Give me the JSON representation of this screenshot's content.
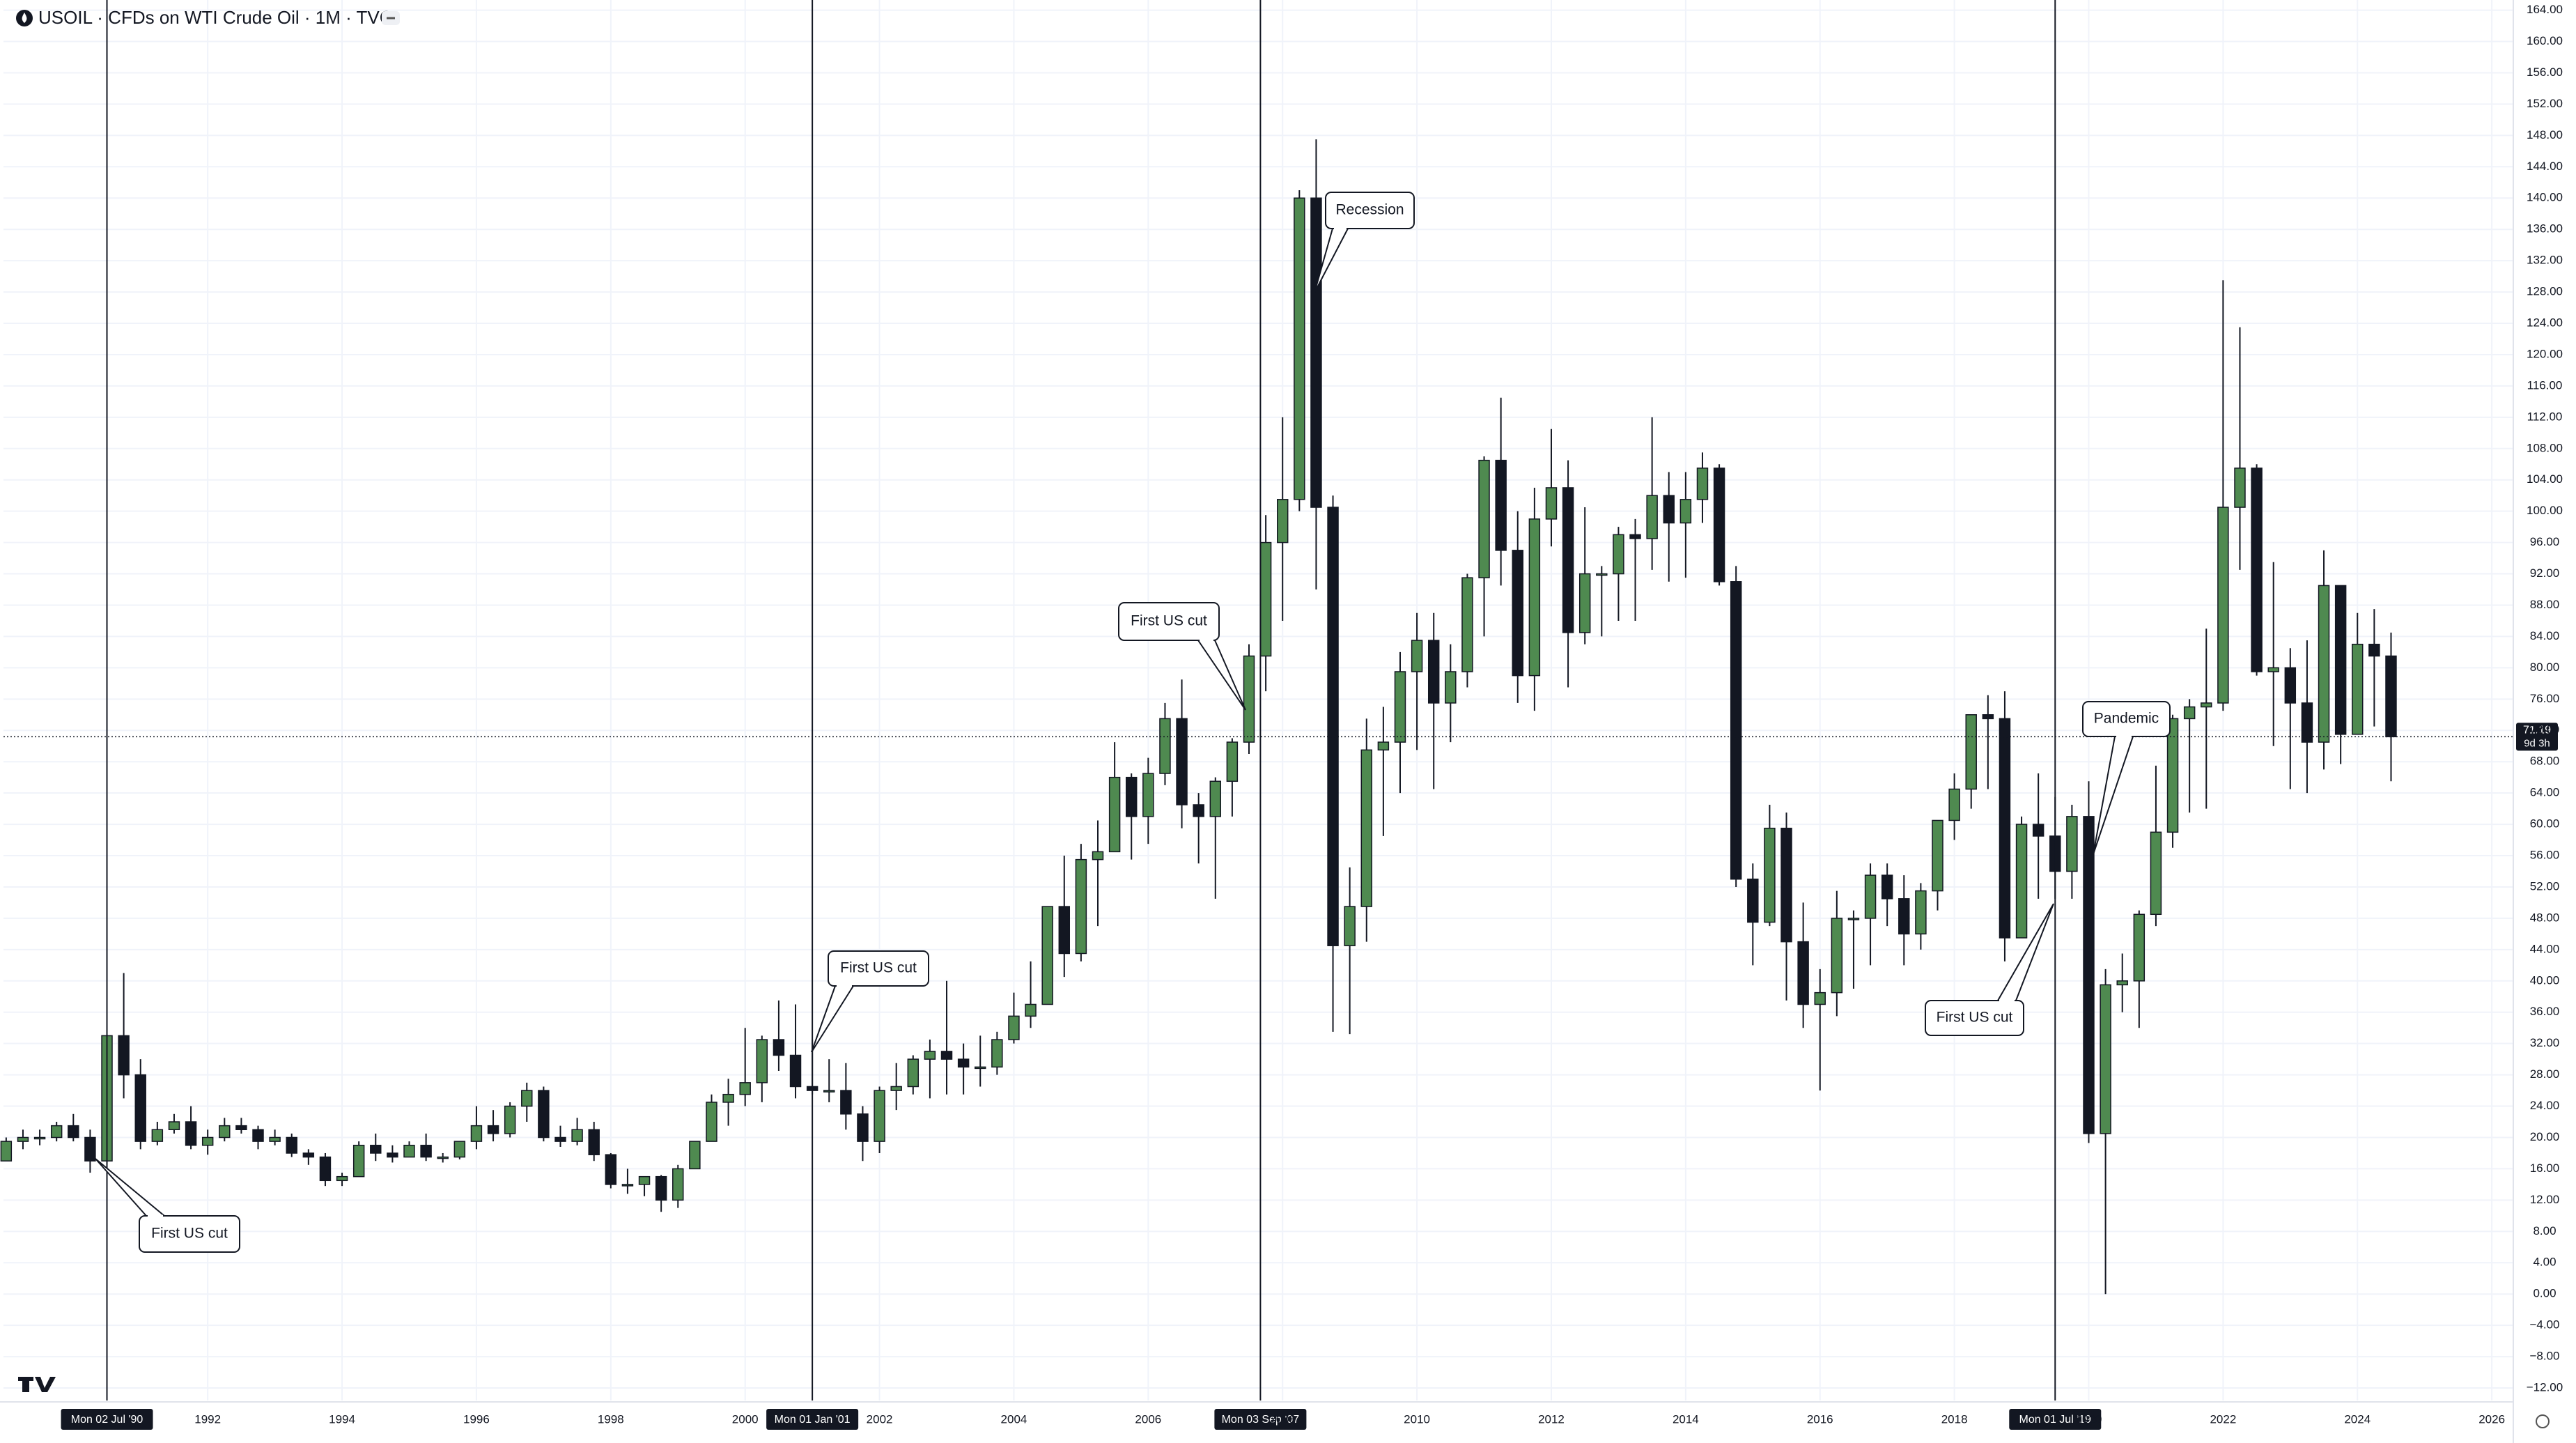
{
  "chart_data": {
    "type": "candlestick",
    "title": "USOIL · CFDs on WTI Crude Oil · 1M · TVC",
    "x": [
      1989,
      1989.25,
      1989.5,
      1989.75,
      1990,
      1990.25,
      1990.5,
      1990.75,
      1991,
      1991.25,
      1991.5,
      1991.75,
      1992,
      1992.25,
      1992.5,
      1992.75,
      1993,
      1993.25,
      1993.5,
      1993.75,
      1994,
      1994.25,
      1994.5,
      1994.75,
      1995,
      1995.25,
      1995.5,
      1995.75,
      1996,
      1996.25,
      1996.5,
      1996.75,
      1997,
      1997.25,
      1997.5,
      1997.75,
      1998,
      1998.25,
      1998.5,
      1998.75,
      1999,
      1999.25,
      1999.5,
      1999.75,
      2000,
      2000.25,
      2000.5,
      2000.75,
      2001,
      2001.25,
      2001.5,
      2001.75,
      2002,
      2002.25,
      2002.5,
      2002.75,
      2003,
      2003.25,
      2003.5,
      2003.75,
      2004,
      2004.25,
      2004.5,
      2004.75,
      2005,
      2005.25,
      2005.5,
      2005.75,
      2006,
      2006.25,
      2006.5,
      2006.75,
      2007,
      2007.25,
      2007.5,
      2007.75,
      2008,
      2008.25,
      2008.5,
      2008.75,
      2009,
      2009.25,
      2009.5,
      2009.75,
      2010,
      2010.25,
      2010.5,
      2010.75,
      2011,
      2011.25,
      2011.5,
      2011.75,
      2012,
      2012.25,
      2012.5,
      2012.75,
      2013,
      2013.25,
      2013.5,
      2013.75,
      2014,
      2014.25,
      2014.5,
      2014.75,
      2015,
      2015.25,
      2015.5,
      2015.75,
      2016,
      2016.25,
      2016.5,
      2016.75,
      2017,
      2017.25,
      2017.5,
      2017.75,
      2018,
      2018.25,
      2018.5,
      2018.75,
      2019,
      2019.25,
      2019.5,
      2019.75,
      2020,
      2020.25,
      2020.5,
      2020.75,
      2021,
      2021.25,
      2021.5,
      2021.75,
      2022,
      2022.25,
      2022.5,
      2022.75,
      2023,
      2023.25,
      2023.5,
      2023.75,
      2024,
      2024.25,
      2024.5
    ],
    "open": [
      17,
      19.5,
      20,
      20,
      21.5,
      20,
      17,
      33,
      28,
      19.5,
      21,
      22,
      19,
      20,
      21.5,
      21,
      19.5,
      20,
      18,
      17.5,
      14.5,
      15,
      19,
      18,
      17.5,
      19,
      17.5,
      17.5,
      19.5,
      21.5,
      20.5,
      24,
      26,
      20,
      19.5,
      21,
      17.8,
      14,
      14,
      15,
      12,
      16,
      19.5,
      24.5,
      25.5,
      27,
      32.5,
      30.5,
      26.5,
      26,
      26,
      23,
      19.5,
      26,
      26.5,
      30,
      31,
      30,
      29,
      29,
      32.5,
      35.5,
      37,
      49.5,
      43.5,
      55.5,
      56.5,
      66,
      61,
      66.5,
      73.5,
      62.5,
      61,
      65.5,
      70.5,
      81.5,
      96,
      101.5,
      140,
      100.5,
      44.5,
      49.5,
      69.5,
      70.5,
      79.5,
      83.5,
      75.5,
      79.5,
      91.5,
      106.5,
      95,
      79,
      99,
      103,
      84.5,
      92,
      92,
      97,
      96.5,
      102,
      98.5,
      101.5,
      105.5,
      91,
      53,
      47.5,
      59.5,
      45,
      37,
      38.5,
      48,
      48,
      53.5,
      50.5,
      46,
      51.5,
      60.5,
      64.5,
      74,
      73.5,
      45.5,
      60,
      58.5,
      54,
      61,
      20.5,
      39.5,
      40,
      48.5,
      59,
      73.5,
      75,
      75.5,
      100.5,
      105.5,
      79.5,
      80,
      75.5,
      70.5,
      90.5,
      71.5,
      83,
      81.5
    ],
    "high": [
      20,
      21,
      21,
      22,
      23,
      21,
      33,
      41,
      30,
      22,
      23,
      24,
      21,
      22.5,
      22.5,
      21.5,
      21,
      20.5,
      18.5,
      18,
      15.5,
      19.5,
      20.5,
      19,
      19.5,
      20.5,
      18,
      19.5,
      24,
      23.5,
      24.5,
      27,
      26.5,
      21.5,
      22.5,
      22,
      18,
      16,
      15,
      15.2,
      16.5,
      19.5,
      25.5,
      27.5,
      34,
      33,
      37.5,
      37,
      32.5,
      30,
      29.5,
      24,
      26.5,
      29.5,
      30.5,
      32.5,
      40,
      32,
      33,
      33.5,
      38.5,
      42.5,
      49.5,
      56,
      57.5,
      60.5,
      70.5,
      66.5,
      68.5,
      75.5,
      78.5,
      64,
      66,
      71,
      83,
      99.5,
      112,
      141,
      147.5,
      102,
      54.5,
      73.5,
      75,
      82,
      87,
      87,
      83,
      92,
      107,
      114.5,
      100,
      103,
      110.5,
      106.5,
      100.5,
      93,
      98,
      99,
      112,
      105,
      105,
      107.5,
      106,
      93,
      55,
      62.5,
      61.5,
      50,
      41.5,
      51.5,
      49,
      55,
      55,
      53.5,
      52.5,
      60.5,
      66.5,
      74,
      76.5,
      77,
      61,
      66.5,
      63.5,
      62.5,
      65.5,
      41.5,
      43.5,
      49,
      67.5,
      74,
      76,
      85,
      129.5,
      123.5,
      106,
      93.5,
      82.5,
      83.5,
      95,
      90.5,
      87,
      87.5,
      84.5
    ],
    "low": [
      17,
      18.5,
      19,
      19.5,
      19.5,
      15.5,
      16.5,
      25,
      18.5,
      19,
      20.5,
      18.5,
      17.8,
      19.5,
      20.5,
      18.5,
      19,
      17.5,
      16.5,
      13.8,
      13.8,
      15,
      17,
      16.8,
      17.5,
      17,
      16.8,
      17.2,
      18.5,
      19.5,
      20,
      22,
      19.5,
      18.8,
      19,
      17,
      13.5,
      12.8,
      12.5,
      10.5,
      11,
      16,
      19.5,
      21.5,
      24,
      24.5,
      28.5,
      25,
      25.5,
      24.5,
      21,
      17,
      18,
      23.5,
      25.5,
      25,
      25.5,
      25.5,
      26.5,
      28,
      32,
      34,
      37,
      40.5,
      42.5,
      47,
      56.5,
      55.5,
      57.5,
      65,
      59.5,
      55,
      50.5,
      61,
      69,
      77,
      86,
      100,
      90,
      33.5,
      33.2,
      45,
      58.5,
      64,
      69.5,
      64.5,
      70.5,
      77.5,
      84,
      90.5,
      75.5,
      74.5,
      95.5,
      77.5,
      83,
      84,
      86,
      86,
      92.5,
      91,
      91.5,
      98.5,
      90.5,
      52,
      42,
      47,
      37.5,
      34,
      26,
      35.5,
      39,
      42,
      47,
      42,
      44,
      49,
      58,
      62,
      64.5,
      42.5,
      45.5,
      50.5,
      50.5,
      50.5,
      19.3,
      0,
      36,
      34,
      47,
      57,
      61.5,
      62,
      74.5,
      92.5,
      79,
      70,
      64.5,
      64,
      67,
      67.7,
      71.5,
      72.5,
      65.5
    ],
    "close": [
      19.5,
      20,
      20,
      21.5,
      20,
      17,
      33,
      28,
      19.5,
      21,
      22,
      19,
      20,
      21.5,
      21,
      19.5,
      20,
      18,
      17.5,
      14.5,
      15,
      19,
      18,
      17.5,
      19,
      17.5,
      17.5,
      19.5,
      21.5,
      20.5,
      24,
      26,
      20,
      19.5,
      21,
      17.8,
      14,
      14,
      15,
      12,
      16,
      19.5,
      24.5,
      25.5,
      27,
      32.5,
      30.5,
      26.5,
      26,
      26,
      23,
      19.5,
      26,
      26.5,
      30,
      31,
      30,
      29,
      29,
      32.5,
      35.5,
      37,
      49.5,
      43.5,
      55.5,
      56.5,
      66,
      61,
      66.5,
      73.5,
      62.5,
      61,
      65.5,
      70.5,
      81.5,
      96,
      101.5,
      140,
      100.5,
      44.5,
      49.5,
      69.5,
      70.5,
      79.5,
      83.5,
      75.5,
      79.5,
      91.5,
      106.5,
      95,
      79,
      99,
      103,
      84.5,
      92,
      92,
      97,
      96.5,
      102,
      98.5,
      101.5,
      105.5,
      91,
      53,
      47.5,
      59.5,
      45,
      37,
      38.5,
      48,
      48,
      53.5,
      50.5,
      46,
      51.5,
      60.5,
      64.5,
      74,
      73.5,
      45.5,
      60,
      58.5,
      54,
      61,
      20.5,
      39.5,
      40,
      48.5,
      59,
      73.5,
      75,
      75.5,
      100.5,
      105.5,
      79.5,
      80,
      75.5,
      70.5,
      90.5,
      71.5,
      83,
      81.5,
      71.19
    ],
    "up_color": "#4f8a50",
    "down_color": "#131722",
    "xlim": [
      1988.96,
      2026.32
    ],
    "xticks": [
      1992,
      1994,
      1996,
      1998,
      2000,
      2002,
      2004,
      2006,
      2008,
      2010,
      2012,
      2014,
      2016,
      2018,
      2020,
      2022,
      2024,
      2026
    ],
    "ylim": [
      -13.6,
      165.3
    ],
    "yticks": [
      {
        "value": -12,
        "label": "−12.00"
      },
      {
        "value": -8,
        "label": "−8.00"
      },
      {
        "value": -4,
        "label": "−4.00"
      },
      {
        "value": 0,
        "label": "0.00"
      },
      {
        "value": 4,
        "label": "4.00"
      },
      {
        "value": 8,
        "label": "8.00"
      },
      {
        "value": 12,
        "label": "12.00"
      },
      {
        "value": 16,
        "label": "16.00"
      },
      {
        "value": 20,
        "label": "20.00"
      },
      {
        "value": 24,
        "label": "24.00"
      },
      {
        "value": 28,
        "label": "28.00"
      },
      {
        "value": 32,
        "label": "32.00"
      },
      {
        "value": 36,
        "label": "36.00"
      },
      {
        "value": 40,
        "label": "40.00"
      },
      {
        "value": 44,
        "label": "44.00"
      },
      {
        "value": 48,
        "label": "48.00"
      },
      {
        "value": 52,
        "label": "52.00"
      },
      {
        "value": 56,
        "label": "56.00"
      },
      {
        "value": 60,
        "label": "60.00"
      },
      {
        "value": 64,
        "label": "64.00"
      },
      {
        "value": 68,
        "label": "68.00"
      },
      {
        "value": 72,
        "label": "72.00"
      },
      {
        "value": 76,
        "label": "76.00"
      },
      {
        "value": 80,
        "label": "80.00"
      },
      {
        "value": 84,
        "label": "84.00"
      },
      {
        "value": 88,
        "label": "88.00"
      },
      {
        "value": 92,
        "label": "92.00"
      },
      {
        "value": 96,
        "label": "96.00"
      },
      {
        "value": 100,
        "label": "100.00"
      },
      {
        "value": 104,
        "label": "104.00"
      },
      {
        "value": 108,
        "label": "108.00"
      },
      {
        "value": 112,
        "label": "112.00"
      },
      {
        "value": 116,
        "label": "116.00"
      },
      {
        "value": 120,
        "label": "120.00"
      },
      {
        "value": 124,
        "label": "124.00"
      },
      {
        "value": 128,
        "label": "128.00"
      },
      {
        "value": 132,
        "label": "132.00"
      },
      {
        "value": 136,
        "label": "136.00"
      },
      {
        "value": 140,
        "label": "140.00"
      },
      {
        "value": 144,
        "label": "144.00"
      },
      {
        "value": 148,
        "label": "148.00"
      },
      {
        "value": 152,
        "label": "152.00"
      },
      {
        "value": 156,
        "label": "156.00"
      },
      {
        "value": 160,
        "label": "160.00"
      },
      {
        "value": 164,
        "label": "164.00"
      }
    ],
    "grid": true,
    "markers": [
      {
        "x": 1990.5,
        "label": "Mon 02 Jul '90"
      },
      {
        "x": 2001,
        "label": "Mon 01 Jan '01"
      },
      {
        "x": 2007.67,
        "label": "Mon 03 Sep '07"
      },
      {
        "x": 2019.5,
        "label": "Mon 01 Jul '19"
      }
    ],
    "annotations": [
      "First US cut",
      "First US cut",
      "First US cut",
      "Recession",
      "First US cut",
      "Pandemic"
    ],
    "last_price": 71.19,
    "countdown": "9d 3h"
  }
}
